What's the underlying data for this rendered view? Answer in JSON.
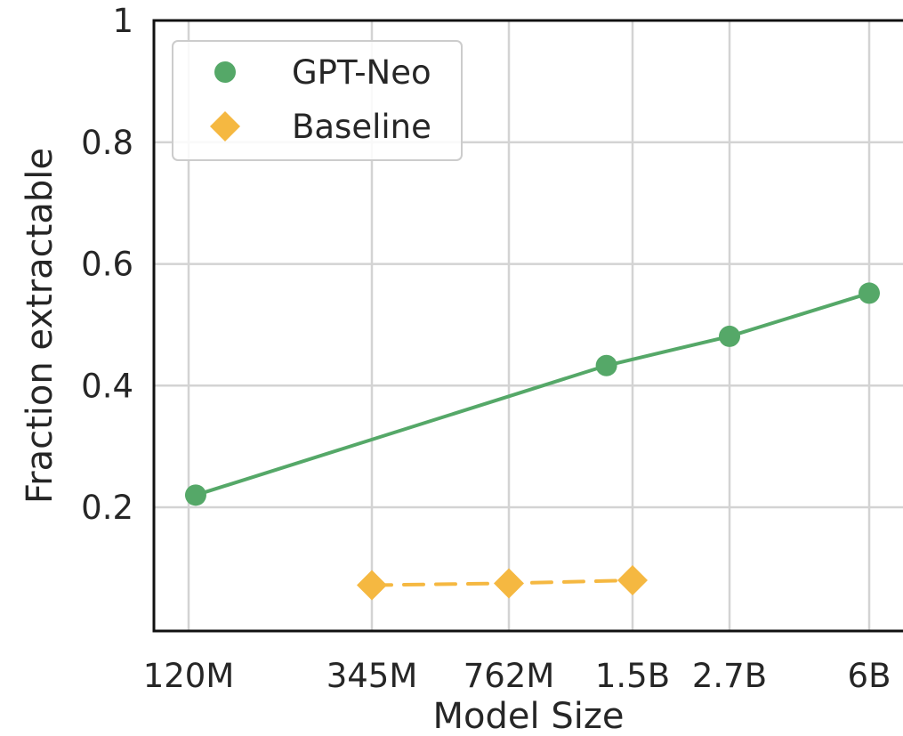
{
  "chart_data": {
    "type": "line",
    "title": "",
    "xlabel": "Model Size",
    "ylabel": "Fraction extractable",
    "x_scale": "log",
    "x_unit": "parameters",
    "x_ticks": [
      {
        "value": 120000000,
        "label": "120M"
      },
      {
        "value": 345000000,
        "label": "345M"
      },
      {
        "value": 762000000,
        "label": "762M"
      },
      {
        "value": 1500000000,
        "label": "1.5B"
      },
      {
        "value": 2700000000,
        "label": "2.7B"
      },
      {
        "value": 6000000000,
        "label": "6B"
      }
    ],
    "y_ticks": [
      {
        "value": 0.2,
        "label": "0.2"
      },
      {
        "value": 0.4,
        "label": "0.4"
      },
      {
        "value": 0.6,
        "label": "0.6"
      },
      {
        "value": 0.8,
        "label": "0.8"
      },
      {
        "value": 1.0,
        "label": "1"
      }
    ],
    "ylim": [
      0,
      1
    ],
    "grid": true,
    "legend_position": "top-left",
    "series": [
      {
        "name": "GPT-Neo",
        "color": "#55a868",
        "marker": "circle",
        "line_style": "solid",
        "x": [
          125000000,
          1300000000,
          2700000000,
          6000000000
        ],
        "y": [
          0.22,
          0.433,
          0.481,
          0.552
        ]
      },
      {
        "name": "Baseline",
        "color": "#f5b841",
        "marker": "diamond",
        "line_style": "dashed",
        "x": [
          345000000,
          762000000,
          1500000000
        ],
        "y": [
          0.072,
          0.075,
          0.08
        ]
      }
    ]
  }
}
